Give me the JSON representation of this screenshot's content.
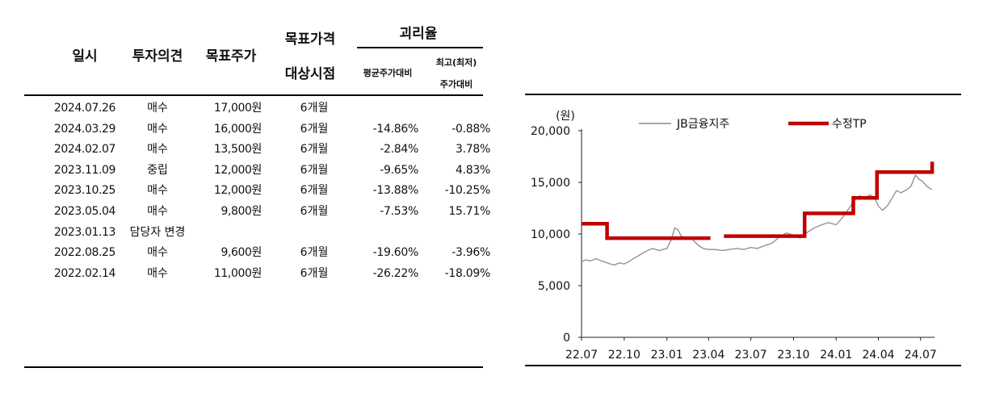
{
  "table": {
    "headers": {
      "date": "일시",
      "opinion": "투자의견",
      "target_price": "목표주가",
      "target_period_line1": "목표가격",
      "target_period_line2": "대상시점",
      "disparity": "괴리율",
      "avg_vs": "평균주가대비",
      "hl_vs_line1": "최고(최저)",
      "hl_vs_line2": "주가대비"
    },
    "rows": [
      {
        "date": "2024.07.26",
        "opinion": "매수",
        "target": "17,000원",
        "period": "6개월",
        "avg": "",
        "hl": ""
      },
      {
        "date": "2024.03.29",
        "opinion": "매수",
        "target": "16,000원",
        "period": "6개월",
        "avg": "-14.86%",
        "hl": "-0.88%"
      },
      {
        "date": "2024.02.07",
        "opinion": "매수",
        "target": "13,500원",
        "period": "6개월",
        "avg": "-2.84%",
        "hl": "3.78%"
      },
      {
        "date": "2023.11.09",
        "opinion": "중립",
        "target": "12,000원",
        "period": "6개월",
        "avg": "-9.65%",
        "hl": "4.83%"
      },
      {
        "date": "2023.10.25",
        "opinion": "매수",
        "target": "12,000원",
        "period": "6개월",
        "avg": "-13.88%",
        "hl": "-10.25%"
      },
      {
        "date": "2023.05.04",
        "opinion": "매수",
        "target": "9,800원",
        "period": "6개월",
        "avg": "-7.53%",
        "hl": "15.71%"
      },
      {
        "date": "2023.01.13",
        "opinion": "담당자 변경",
        "target": "",
        "period": "",
        "avg": "",
        "hl": ""
      },
      {
        "date": "2022.08.25",
        "opinion": "매수",
        "target": "9,600원",
        "period": "6개월",
        "avg": "-19.60%",
        "hl": "-3.96%"
      },
      {
        "date": "2022.02.14",
        "opinion": "매수",
        "target": "11,000원",
        "period": "6개월",
        "avg": "-26.22%",
        "hl": "-18.09%"
      }
    ]
  },
  "chart_data": {
    "type": "line",
    "unit_label": "(원)",
    "ylim": [
      0,
      20000
    ],
    "yticks": [
      0,
      5000,
      10000,
      15000,
      20000
    ],
    "ytick_labels": [
      "0",
      "5,000",
      "10,000",
      "15,000",
      "20,000"
    ],
    "xlim": [
      "2022-07-01",
      "2024-07-31"
    ],
    "xticks": [
      "2022-07-01",
      "2022-10-01",
      "2023-01-01",
      "2023-04-01",
      "2023-07-01",
      "2023-10-01",
      "2024-01-01",
      "2024-04-01",
      "2024-07-01"
    ],
    "xtick_labels": [
      "22.07",
      "22.10",
      "23.01",
      "23.04",
      "23.07",
      "23.10",
      "24.01",
      "24.04",
      "24.07"
    ],
    "grid": false,
    "legend": "top",
    "series": [
      {
        "name": "JB금융지주",
        "color": "#8c8c8c",
        "points": [
          [
            "2022-07-01",
            7300
          ],
          [
            "2022-07-10",
            7500
          ],
          [
            "2022-07-20",
            7400
          ],
          [
            "2022-08-01",
            7600
          ],
          [
            "2022-08-10",
            7450
          ],
          [
            "2022-08-20",
            7300
          ],
          [
            "2022-09-01",
            7100
          ],
          [
            "2022-09-10",
            7000
          ],
          [
            "2022-09-20",
            7200
          ],
          [
            "2022-10-01",
            7100
          ],
          [
            "2022-10-10",
            7300
          ],
          [
            "2022-10-20",
            7600
          ],
          [
            "2022-11-01",
            7900
          ],
          [
            "2022-11-15",
            8300
          ],
          [
            "2022-12-01",
            8600
          ],
          [
            "2022-12-15",
            8400
          ],
          [
            "2023-01-01",
            8600
          ],
          [
            "2023-01-10",
            9400
          ],
          [
            "2023-01-18",
            10600
          ],
          [
            "2023-01-25",
            10400
          ],
          [
            "2023-02-01",
            9800
          ],
          [
            "2023-02-10",
            9600
          ],
          [
            "2023-02-20",
            9700
          ],
          [
            "2023-03-01",
            9300
          ],
          [
            "2023-03-10",
            8900
          ],
          [
            "2023-03-20",
            8600
          ],
          [
            "2023-04-01",
            8500
          ],
          [
            "2023-04-15",
            8500
          ],
          [
            "2023-05-01",
            8400
          ],
          [
            "2023-05-15",
            8500
          ],
          [
            "2023-06-01",
            8600
          ],
          [
            "2023-06-15",
            8500
          ],
          [
            "2023-07-01",
            8700
          ],
          [
            "2023-07-15",
            8600
          ],
          [
            "2023-08-01",
            8900
          ],
          [
            "2023-08-15",
            9100
          ],
          [
            "2023-09-01",
            9700
          ],
          [
            "2023-09-15",
            10100
          ],
          [
            "2023-10-01",
            9900
          ],
          [
            "2023-10-15",
            9600
          ],
          [
            "2023-11-01",
            10200
          ],
          [
            "2023-11-15",
            10600
          ],
          [
            "2023-12-01",
            10900
          ],
          [
            "2023-12-15",
            11100
          ],
          [
            "2024-01-01",
            10900
          ],
          [
            "2024-01-15",
            11600
          ],
          [
            "2024-02-01",
            12700
          ],
          [
            "2024-02-10",
            13300
          ],
          [
            "2024-02-20",
            13700
          ],
          [
            "2024-03-01",
            13500
          ],
          [
            "2024-03-15",
            13800
          ],
          [
            "2024-03-25",
            13400
          ],
          [
            "2024-04-01",
            12700
          ],
          [
            "2024-04-10",
            12300
          ],
          [
            "2024-04-20",
            12700
          ],
          [
            "2024-05-01",
            13500
          ],
          [
            "2024-05-10",
            14200
          ],
          [
            "2024-05-20",
            14000
          ],
          [
            "2024-06-01",
            14300
          ],
          [
            "2024-06-10",
            14600
          ],
          [
            "2024-06-20",
            15700
          ],
          [
            "2024-06-28",
            15300
          ],
          [
            "2024-07-05",
            15100
          ],
          [
            "2024-07-15",
            14600
          ],
          [
            "2024-07-25",
            14300
          ]
        ]
      },
      {
        "name": "수정TP",
        "color": "#c00000",
        "segments": [
          [
            [
              "2022-07-01",
              11000
            ],
            [
              "2022-08-25",
              11000
            ],
            [
              "2022-08-25",
              9600
            ],
            [
              "2023-04-05",
              9600
            ]
          ],
          [
            [
              "2023-05-04",
              9800
            ],
            [
              "2023-10-25",
              9800
            ],
            [
              "2023-10-25",
              12000
            ],
            [
              "2024-02-07",
              12000
            ],
            [
              "2024-02-07",
              13500
            ],
            [
              "2024-03-29",
              13500
            ],
            [
              "2024-03-29",
              16000
            ],
            [
              "2024-07-26",
              16000
            ],
            [
              "2024-07-26",
              17000
            ]
          ]
        ]
      }
    ]
  }
}
